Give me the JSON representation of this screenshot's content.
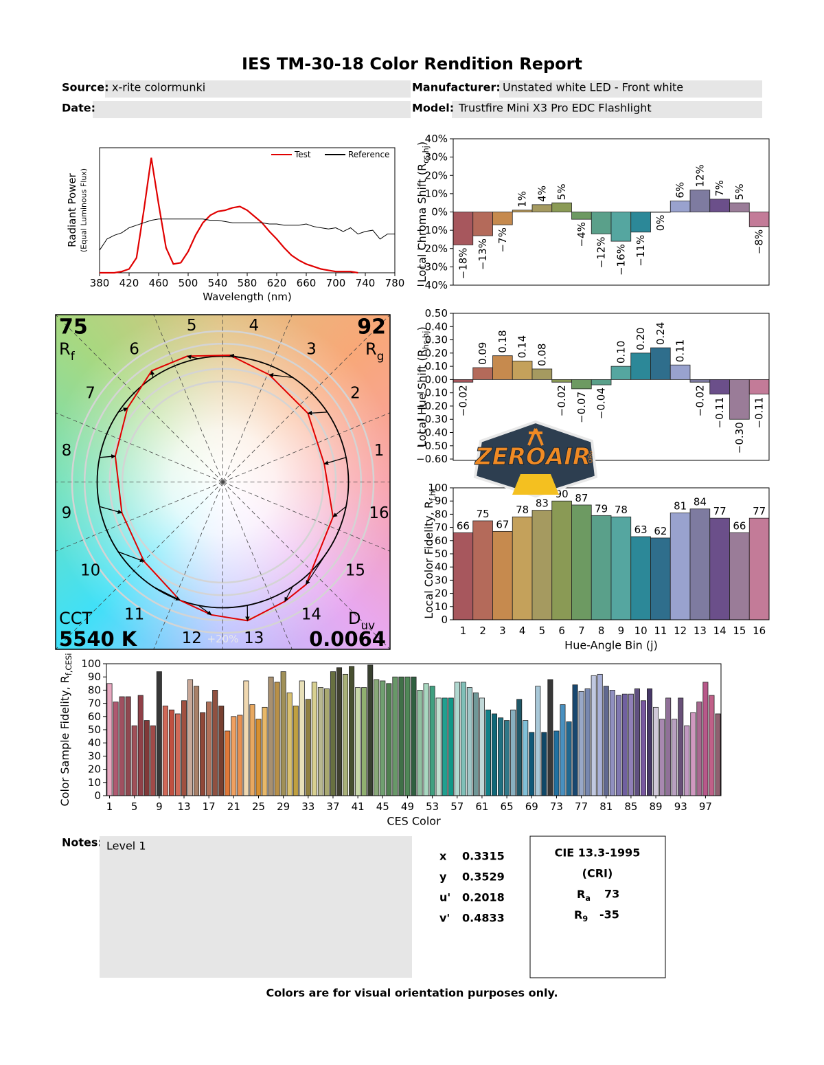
{
  "header": {
    "title": "IES TM-30-18 Color Rendition Report",
    "source_label": "Source:",
    "source": "x-rite colormunki",
    "manufacturer_label": "Manufacturer:",
    "manufacturer": "Unstated white LED - Front white",
    "date_label": "Date:",
    "model_label": "Model:",
    "model": "Trustfire Mini X3 Pro EDC Flashlight"
  },
  "chart_data": [
    {
      "type": "line",
      "xlabel": "Wavelength (nm)",
      "ylabel": "Radiant Power",
      "ylabel_note": "(Equal Luminous Flux)",
      "legend": "upper right",
      "x": [
        380,
        390,
        400,
        410,
        420,
        430,
        440,
        450,
        460,
        470,
        480,
        490,
        500,
        510,
        520,
        530,
        540,
        550,
        560,
        570,
        580,
        590,
        600,
        610,
        620,
        630,
        640,
        650,
        660,
        670,
        680,
        690,
        700,
        710,
        720,
        730,
        740,
        750,
        760,
        770,
        780
      ],
      "xlim": [
        380,
        780
      ],
      "xticks": [
        380,
        420,
        460,
        500,
        540,
        580,
        620,
        660,
        700,
        740,
        780
      ],
      "ylim": [
        0,
        1
      ],
      "series": [
        {
          "name": "Test",
          "color": "#e00000",
          "values": [
            0,
            0,
            0,
            0.01,
            0.03,
            0.12,
            0.5,
            0.92,
            0.55,
            0.2,
            0.07,
            0.08,
            0.17,
            0.3,
            0.4,
            0.46,
            0.49,
            0.5,
            0.52,
            0.53,
            0.5,
            0.45,
            0.4,
            0.33,
            0.27,
            0.2,
            0.14,
            0.1,
            0.07,
            0.05,
            0.03,
            0.02,
            0.01,
            0.01,
            0.01,
            0,
            null,
            null,
            null,
            null,
            null
          ]
        },
        {
          "name": "Reference",
          "color": "#000000",
          "values": [
            0.18,
            0.27,
            0.3,
            0.32,
            0.36,
            0.38,
            0.4,
            0.42,
            0.43,
            0.43,
            0.43,
            0.43,
            0.43,
            0.43,
            0.43,
            0.42,
            0.42,
            0.41,
            0.4,
            0.4,
            0.4,
            0.4,
            0.4,
            0.39,
            0.39,
            0.38,
            0.38,
            0.38,
            0.39,
            0.37,
            0.36,
            0.35,
            0.36,
            0.33,
            0.36,
            0.31,
            0.33,
            0.34,
            0.27,
            0.31,
            0.31
          ]
        }
      ]
    },
    {
      "type": "bar",
      "ylabel": {
        "text": "Local Chroma Shift (R",
        "sub": "cs,hj",
        "tail": ")"
      },
      "values": [
        -18,
        -13,
        -7,
        1,
        4,
        5,
        -4,
        -12,
        -16,
        -11,
        0,
        6,
        12,
        7,
        5,
        -8
      ],
      "value_labels": [
        "−18%",
        "−13%",
        "−7%",
        "1%",
        "4%",
        "5%",
        "−4%",
        "−12%",
        "−16%",
        "−11%",
        "0%",
        "6%",
        "12%",
        "7%",
        "5%",
        "−8%"
      ],
      "colors": [
        "#a7575d",
        "#b46a5a",
        "#c68a4e",
        "#c4a15b",
        "#a59a60",
        "#8a9a55",
        "#6d9a62",
        "#5aa08a",
        "#55a6a0",
        "#2c8898",
        "#2f6e8c",
        "#99a2ce",
        "#7e7ba0",
        "#6b4f8a",
        "#9a7c98",
        "#c37b98"
      ],
      "ylim": [
        -40,
        40
      ],
      "yticks": [
        {
          "value": 40,
          "label": "40%"
        },
        {
          "value": 30,
          "label": "30%"
        },
        {
          "value": 20,
          "label": "20%"
        },
        {
          "value": 10,
          "label": "10%"
        },
        {
          "value": 0,
          "label": "0%"
        },
        {
          "value": -10,
          "label": "−10%"
        },
        {
          "value": -20,
          "label": "−20%"
        },
        {
          "value": -30,
          "label": "−30%"
        },
        {
          "value": -40,
          "label": "−40%"
        }
      ]
    },
    {
      "type": "bar",
      "ylabel": {
        "text": "Local Hue Shift (R",
        "sub": "hs,hj",
        "tail": ")"
      },
      "values": [
        -0.02,
        0.09,
        0.18,
        0.14,
        0.08,
        -0.02,
        -0.07,
        -0.04,
        0.1,
        0.2,
        0.24,
        0.11,
        -0.02,
        -0.11,
        -0.3,
        -0.11
      ],
      "value_labels": [
        "−0.02",
        "0.09",
        "0.18",
        "0.14",
        "0.08",
        "−0.02",
        "−0.07",
        "−0.04",
        "0.10",
        "0.20",
        "0.24",
        "0.11",
        "−0.02",
        "−0.11",
        "−0.30",
        "−0.11"
      ],
      "colors": [
        "#a7575d",
        "#b46a5a",
        "#c68a4e",
        "#c4a15b",
        "#a59a60",
        "#8a9a55",
        "#6d9a62",
        "#5aa08a",
        "#55a6a0",
        "#2c8898",
        "#2f6e8c",
        "#99a2ce",
        "#7e7ba0",
        "#6b4f8a",
        "#9a7c98",
        "#c37b98"
      ],
      "ylim": [
        -0.61,
        0.5
      ],
      "yticks": [
        {
          "value": 0.5,
          "label": "0.50"
        },
        {
          "value": 0.4,
          "label": "0.40"
        },
        {
          "value": 0.3,
          "label": "0.30"
        },
        {
          "value": 0.2,
          "label": "0.20"
        },
        {
          "value": 0.1,
          "label": "0.10"
        },
        {
          "value": 0,
          "label": "0.00"
        },
        {
          "value": -0.1,
          "label": "−0.10"
        },
        {
          "value": -0.2,
          "label": "−0.20"
        },
        {
          "value": -0.3,
          "label": "−0.30"
        },
        {
          "value": -0.4,
          "label": "−0.40"
        },
        {
          "value": -0.5,
          "label": "−0.50"
        },
        {
          "value": -0.6,
          "label": "−0.60"
        }
      ]
    },
    {
      "type": "bar",
      "ylabel": {
        "text": "Local Color Fidelity, R",
        "sub": "f,hj"
      },
      "xlabel": "Hue-Angle Bin (j)",
      "categories": [
        "1",
        "2",
        "3",
        "4",
        "5",
        "6",
        "7",
        "8",
        "9",
        "10",
        "11",
        "12",
        "13",
        "14",
        "15",
        "16"
      ],
      "values": [
        66,
        75,
        67,
        78,
        83,
        90,
        87,
        79,
        78,
        63,
        62,
        81,
        84,
        77,
        66,
        77
      ],
      "colors": [
        "#a7575d",
        "#b46a5a",
        "#c68a4e",
        "#c4a15b",
        "#a59a60",
        "#8a9a55",
        "#6d9a62",
        "#5aa08a",
        "#55a6a0",
        "#2c8898",
        "#2f6e8c",
        "#99a2ce",
        "#7e7ba0",
        "#6b4f8a",
        "#9a7c98",
        "#c37b98"
      ],
      "ylim": [
        0,
        100
      ],
      "yticks": [
        0,
        10,
        20,
        30,
        40,
        50,
        60,
        70,
        80,
        90,
        100
      ]
    },
    {
      "type": "bar",
      "ylabel": {
        "text": "Color Sample Fidelity, R",
        "sub": "f,CESi"
      },
      "xlabel": "CES Color",
      "x": [
        1,
        2,
        3,
        4,
        5,
        6,
        7,
        8,
        9,
        10,
        11,
        12,
        13,
        14,
        15,
        16,
        17,
        18,
        19,
        20,
        21,
        22,
        23,
        24,
        25,
        26,
        27,
        28,
        29,
        30,
        31,
        32,
        33,
        34,
        35,
        36,
        37,
        38,
        39,
        40,
        41,
        42,
        43,
        44,
        45,
        46,
        47,
        48,
        49,
        50,
        51,
        52,
        53,
        54,
        55,
        56,
        57,
        58,
        59,
        60,
        61,
        62,
        63,
        64,
        65,
        66,
        67,
        68,
        69,
        70,
        71,
        72,
        73,
        74,
        75,
        76,
        77,
        78,
        79,
        80,
        81,
        82,
        83,
        84,
        85,
        86,
        87,
        88,
        89,
        90,
        91,
        92,
        93,
        94,
        95,
        96,
        97,
        98,
        99
      ],
      "values": [
        85,
        71,
        75,
        75,
        53,
        76,
        57,
        53,
        94,
        68,
        65,
        62,
        72,
        88,
        83,
        63,
        71,
        80,
        68,
        49,
        60,
        61,
        87,
        69,
        58,
        67,
        90,
        86,
        94,
        78,
        68,
        87,
        73,
        86,
        82,
        81,
        94,
        97,
        92,
        98,
        82,
        82,
        99,
        88,
        87,
        85,
        90,
        90,
        90,
        90,
        80,
        85,
        83,
        74,
        74,
        74,
        86,
        86,
        82,
        78,
        74,
        65,
        62,
        59,
        57,
        65,
        73,
        57,
        48,
        83,
        48,
        88,
        49,
        69,
        56,
        84,
        79,
        81,
        91,
        92,
        83,
        80,
        76,
        77,
        77,
        81,
        72,
        81,
        67,
        58,
        74,
        58,
        74,
        53,
        63,
        71,
        86,
        76,
        62
      ],
      "colors": [
        "#e8a8c0",
        "#b05870",
        "#a05060",
        "#904850",
        "#a05058",
        "#904048",
        "#803838",
        "#a04a48",
        "#383838",
        "#d06858",
        "#c05040",
        "#d06a58",
        "#a05040",
        "#c8a898",
        "#a88068",
        "#904838",
        "#b07058",
        "#905040",
        "#784030",
        "#e07838",
        "#f0a060",
        "#e89050",
        "#f0d8b0",
        "#e8a860",
        "#d89030",
        "#e8b868",
        "#a89070",
        "#b89048",
        "#a09058",
        "#d8c070",
        "#c0a040",
        "#e8e0b8",
        "#908040",
        "#d8d090",
        "#b8b890",
        "#a8a870",
        "#687040",
        "#404030",
        "#a8b078",
        "#485030",
        "#c8d8a8",
        "#90b070",
        "#384030",
        "#88a878",
        "#70a070",
        "#508050",
        "#689868",
        "#407048",
        "#508858",
        "#306040",
        "#90c0a0",
        "#a8d8c0",
        "#40a080",
        "#c0e0d0",
        "#20a090",
        "#109888",
        "#b0d8d0",
        "#80c0b8",
        "#a0c8c8",
        "#709898",
        "#c0d8d8",
        "#108088",
        "#106878",
        "#207080",
        "#307888",
        "#88b0c0",
        "#205868",
        "#80c0d8",
        "#105878",
        "#a8c8d8",
        "#104868",
        "#383838",
        "#2070a0",
        "#4890c0",
        "#206890",
        "#184870",
        "#98a8c8",
        "#7888b0",
        "#c0c8e0",
        "#a8b0d8",
        "#606890",
        "#9090c0",
        "#8078b0",
        "#7060a0",
        "#9080b8",
        "#605080",
        "#7858a0",
        "#483868",
        "#d0c8d8",
        "#a888b0",
        "#907098",
        "#b8a0c0",
        "#685078",
        "#c098c0",
        "#d098c0",
        "#a86890",
        "#b8588a",
        "#c06088",
        "#906070"
      ],
      "xlim": [
        0.5,
        99.5
      ],
      "xticks": [
        1,
        5,
        9,
        13,
        17,
        21,
        25,
        29,
        33,
        37,
        41,
        45,
        49,
        53,
        57,
        61,
        65,
        69,
        73,
        77,
        81,
        85,
        89,
        93,
        97
      ],
      "ylim": [
        0,
        100
      ],
      "yticks": [
        0,
        10,
        20,
        30,
        40,
        50,
        60,
        70,
        80,
        90,
        100
      ]
    },
    {
      "type": "vector",
      "rf": 75,
      "rf_symbol": "R",
      "rf_sub": "f",
      "rg": 92,
      "rg_symbol": "R",
      "rg_sub": "g",
      "cct_label": "CCT",
      "cct": "5540 K",
      "duv_symbol": "D",
      "duv_sub": "uv",
      "duv": 0.0064,
      "bin_labels": [
        "1",
        "2",
        "3",
        "4",
        "5",
        "6",
        "7",
        "8",
        "9",
        "10",
        "11",
        "12",
        "13",
        "14",
        "15",
        "16"
      ],
      "scale_label": "+20%"
    }
  ],
  "logo": {
    "text": "ZEROAIR",
    "suffix": "ORG"
  },
  "notes": {
    "label": "Notes:",
    "text": "Level 1"
  },
  "metrics": [
    {
      "label": "x",
      "value": 0.3315
    },
    {
      "label": "y",
      "value": 0.3529
    },
    {
      "label": "u'",
      "value": 0.2018
    },
    {
      "label": "v'",
      "value": 0.4833
    }
  ],
  "cri": {
    "title": "CIE 13.3-1995",
    "subtitle": "(CRI)",
    "ra_symbol": "R",
    "ra_sub": "a",
    "ra": 73,
    "r9_symbol": "R",
    "r9_sub": "9",
    "r9": -35
  },
  "footer": "Colors are for visual orientation purposes only."
}
